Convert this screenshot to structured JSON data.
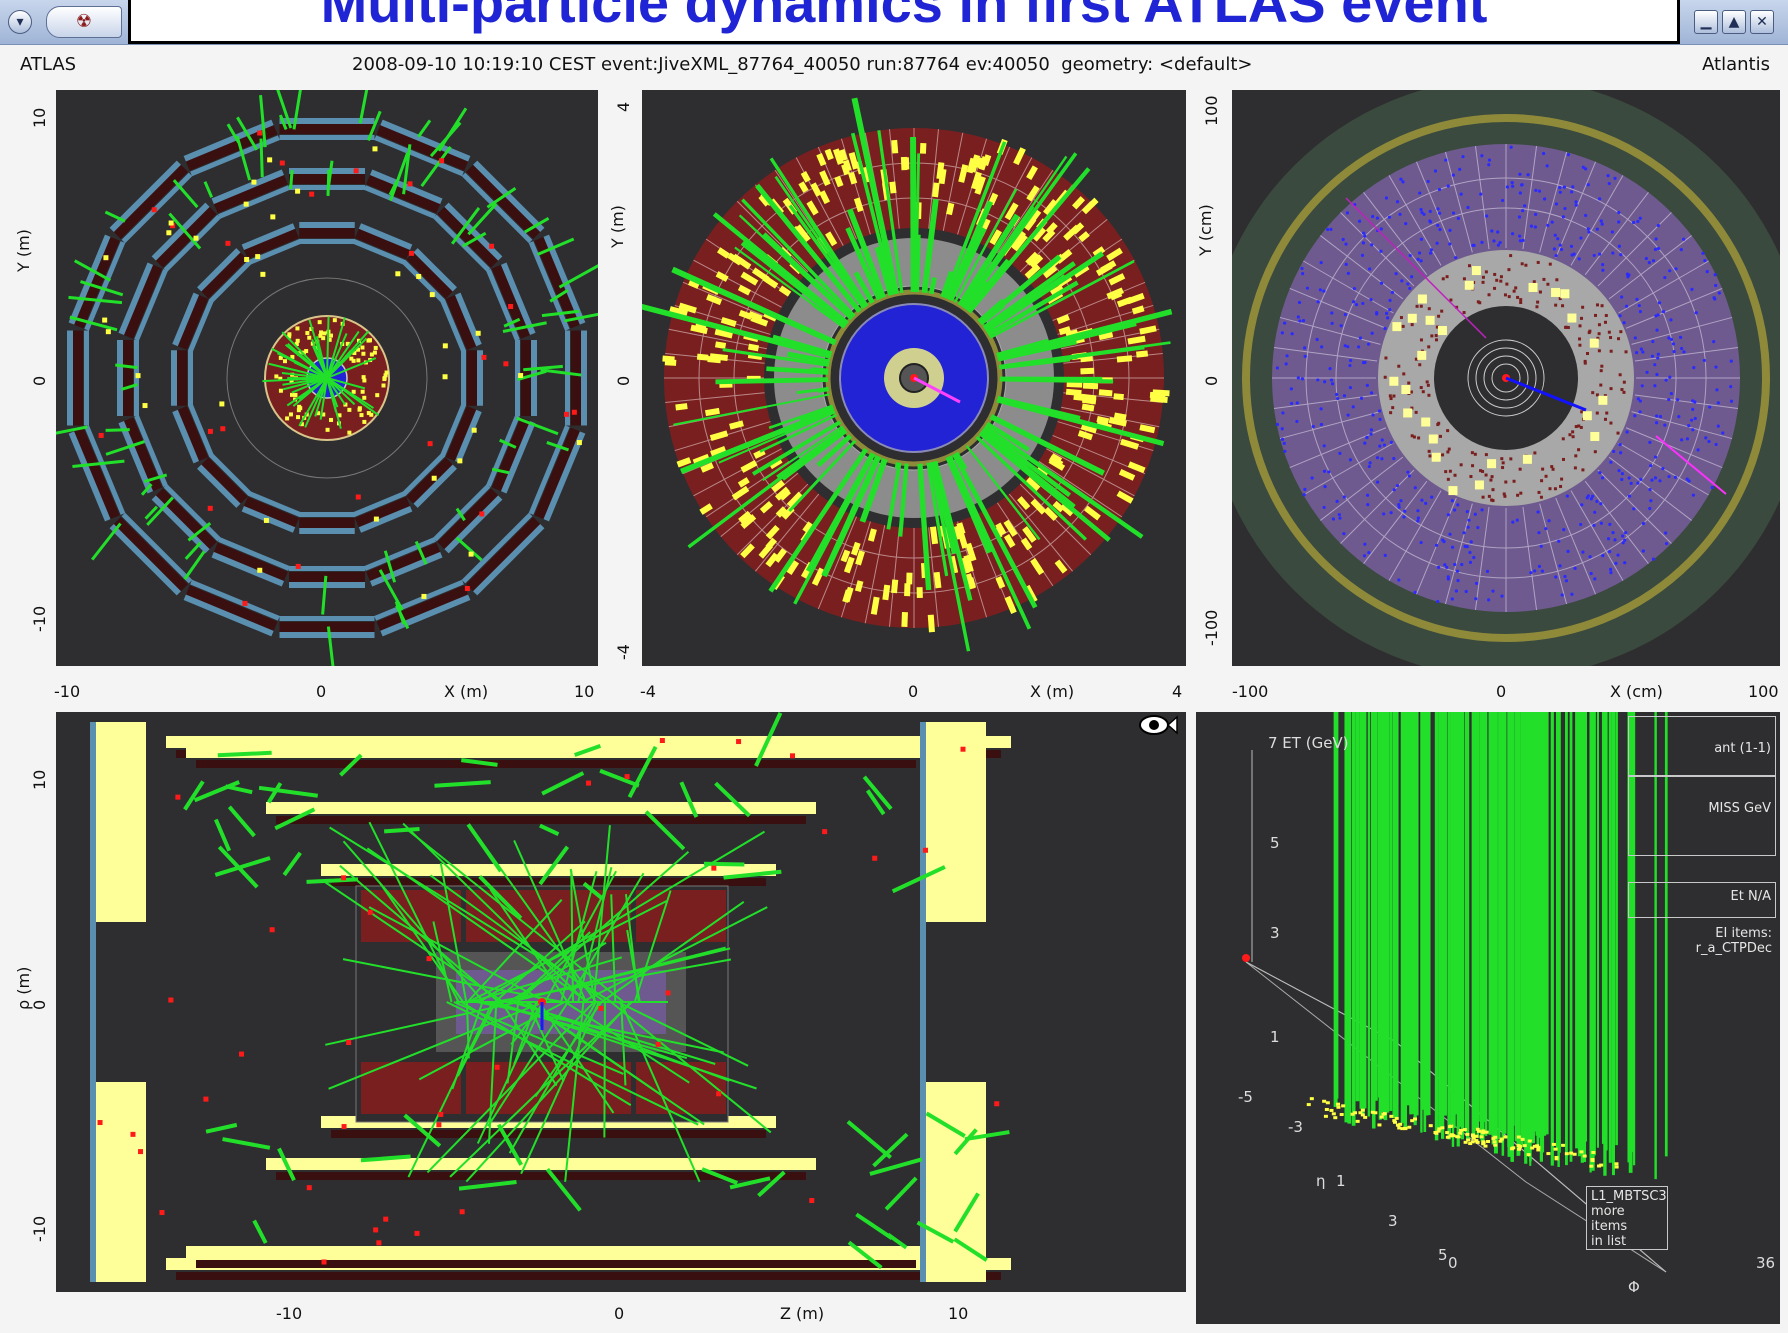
{
  "window": {
    "title": "Multi-particle dynamics in first ATLAS event",
    "menu_icon": "chevron-down-icon",
    "app_icon": "atlantis-logo-icon",
    "controls": [
      "minimize-icon",
      "maximize-icon",
      "close-icon"
    ],
    "control_glyphs": {
      "minimize": "▁",
      "maximize": "▲",
      "close": "✕",
      "menu": "▾",
      "app": "☢"
    }
  },
  "infobar": {
    "left": "ATLAS",
    "center": "2008-09-10 10:19:10 CEST event:JiveXML_87764_40050 run:87764 ev:40050  geometry: <default>",
    "right": "Atlantis"
  },
  "panels": {
    "xy_muon": {
      "y_label": "Y (m)",
      "x_label": "X (m)",
      "x_ticks": [
        "-10",
        "0",
        "10"
      ],
      "y_ticks": [
        "10",
        "0",
        "-10"
      ]
    },
    "xy_calo": {
      "y_label": "Y (m)",
      "x_label": "X (m)",
      "x_ticks": [
        "-4",
        "0",
        "4"
      ],
      "y_ticks": [
        "4",
        "0",
        "-4"
      ]
    },
    "xy_inner": {
      "y_label": "Y (cm)",
      "x_label": "X (cm)",
      "x_ticks": [
        "-100",
        "0",
        "100"
      ],
      "y_ticks": [
        "100",
        "0",
        "-100"
      ]
    },
    "rz": {
      "y_label": "ρ (m)",
      "x_label": "Z (m)",
      "x_ticks": [
        "-10",
        "0",
        "10"
      ],
      "y_ticks": [
        "10",
        "0",
        "-10"
      ],
      "eye_icon": "fisheye-toggle-icon"
    },
    "lego": {
      "et_label": "7 ET (GeV)",
      "z_ticks": [
        "5",
        "3",
        "1"
      ],
      "eta_label": "η",
      "eta_ticks": [
        "-5",
        "-3",
        "1",
        "3",
        "5"
      ],
      "phi_label": "Φ",
      "phi_ticks": [
        "0",
        "36"
      ],
      "legend": {
        "event_label": "ant (1-1)",
        "et_value": "MISS GeV",
        "et_na": "Et N/A",
        "items_title": "EI items:",
        "items_first": "r_a_CTPDec",
        "items_tail": [
          "L1_MBTSC3",
          "more items",
          "in list"
        ]
      }
    }
  },
  "colors": {
    "panel_bg": "#2e2e30",
    "muon_chamber": "#5a8fb0",
    "muon_dark": "#3a0f0f",
    "track_green": "#22e02a",
    "hit_yellow": "#ffff44",
    "hit_red": "#ff1a1a",
    "calo_red": "#7a1f1f",
    "inner_blue": "#2323d6",
    "inner_purple": "#6e5a8e",
    "gold_ring": "#8f8a3a",
    "title_blue": "#1f25d4"
  }
}
